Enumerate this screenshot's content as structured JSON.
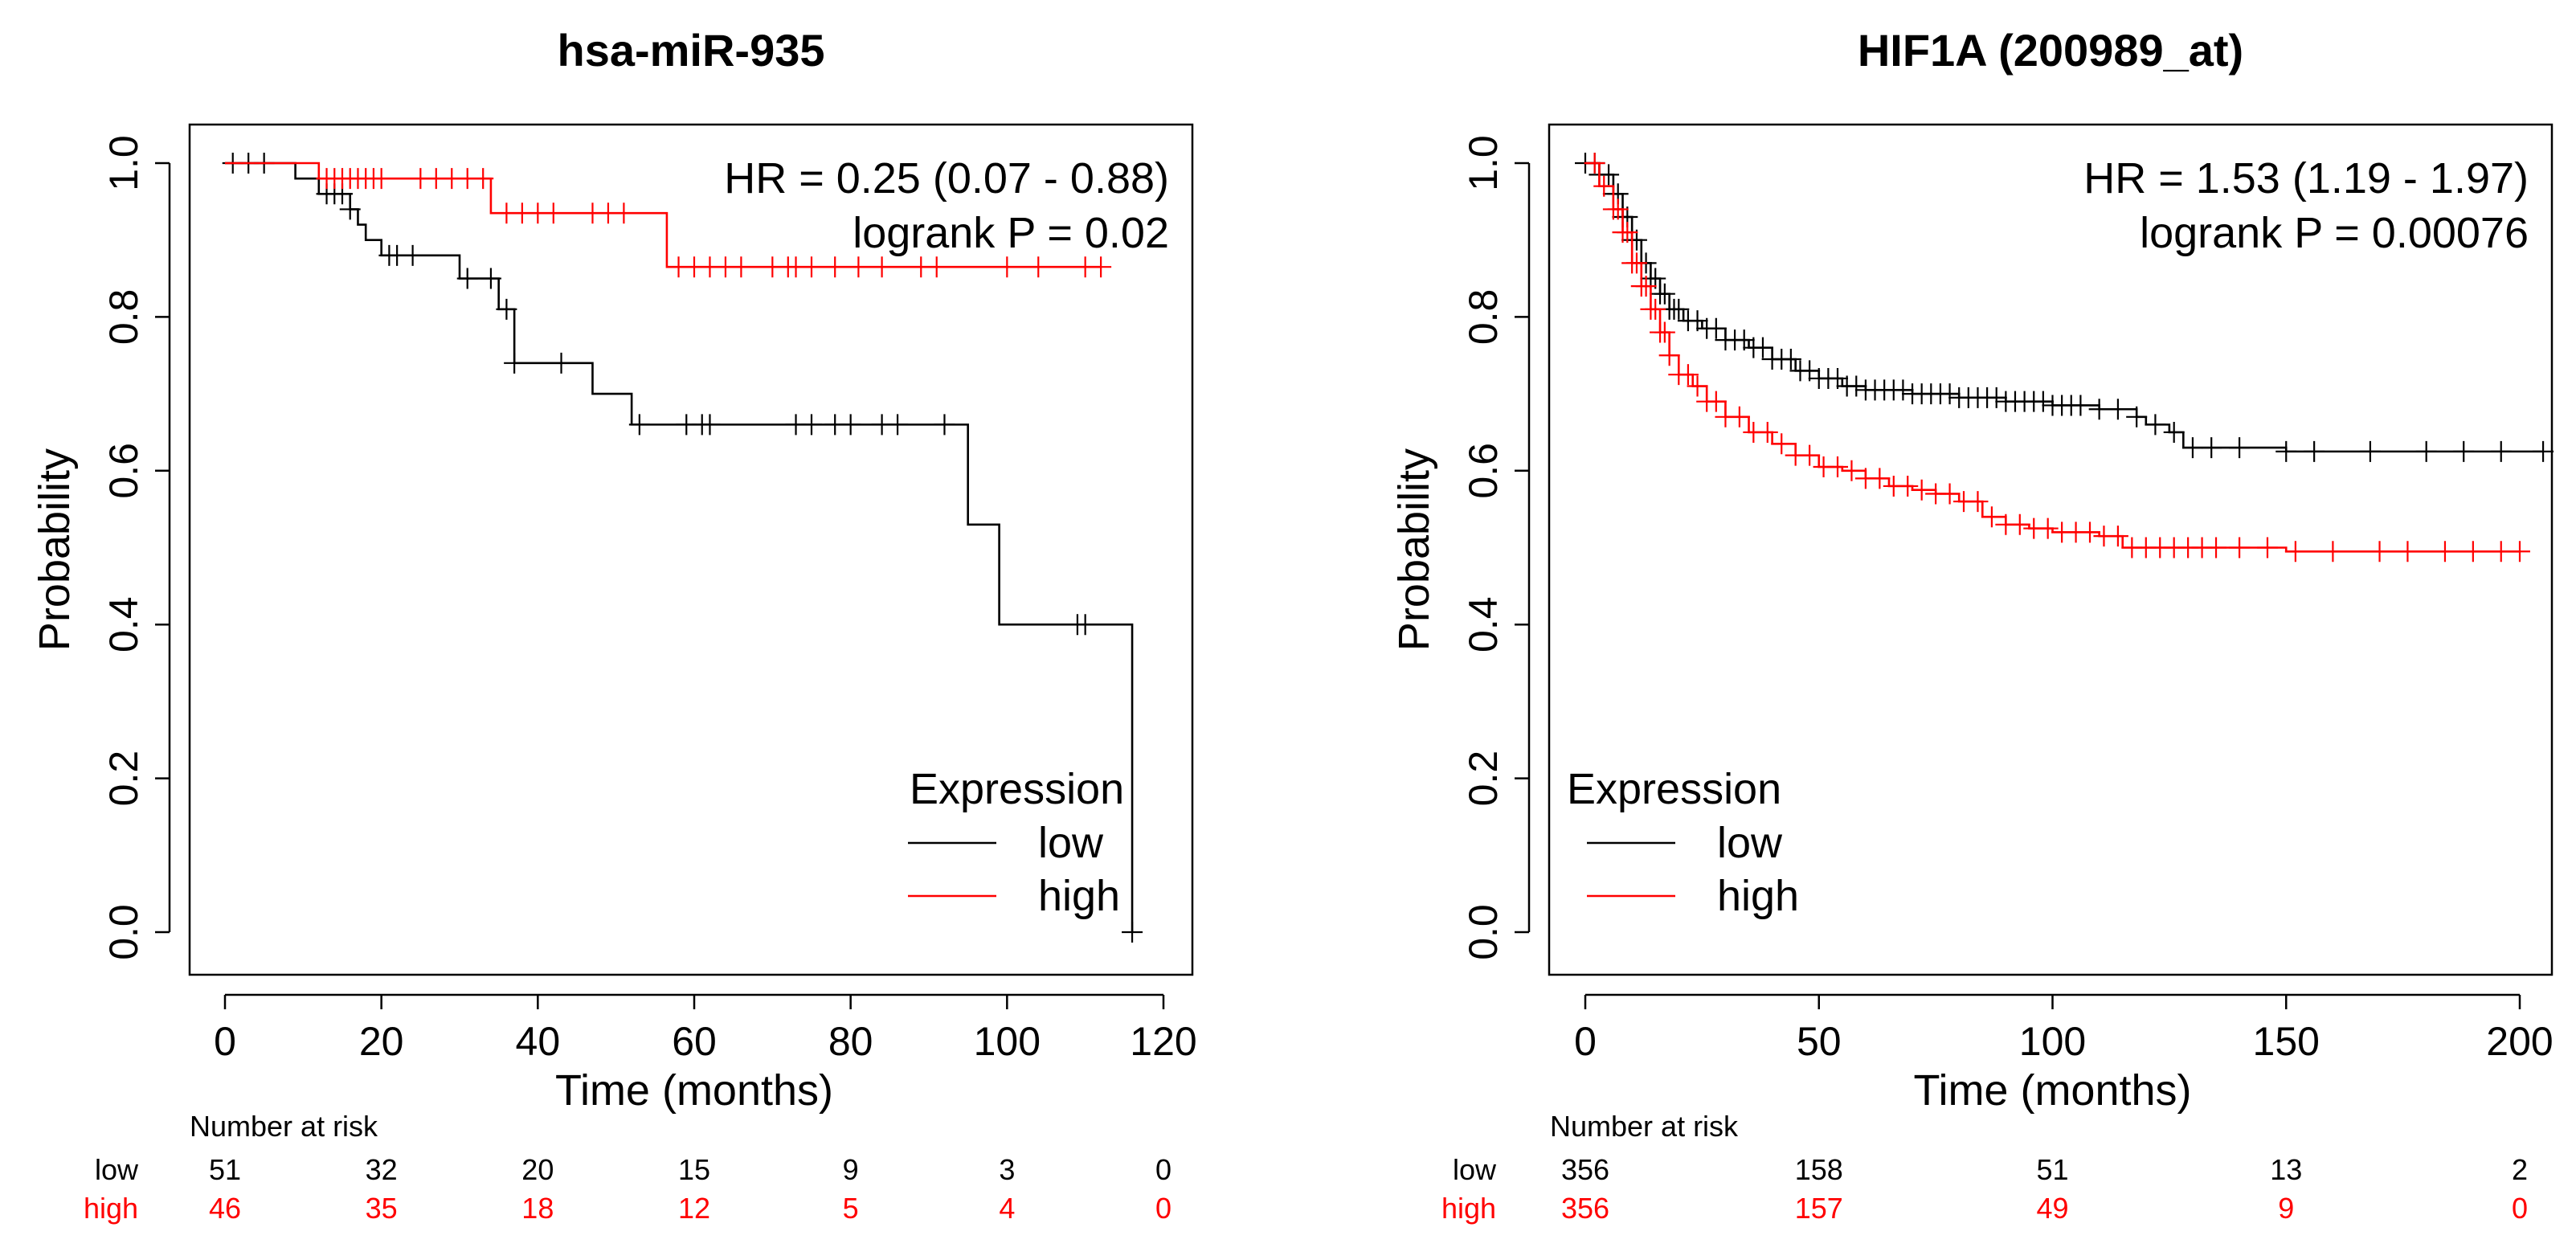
{
  "colors": {
    "low": "#000000",
    "high": "#ff0000",
    "axis": "#000000",
    "background": "#ffffff"
  },
  "chart_data": [
    {
      "type": "line",
      "subtype": "kaplan-meier",
      "title": "hsa-miR-935",
      "xlabel": "Time (months)",
      "ylabel": "Probability",
      "xlim": [
        0,
        120
      ],
      "ylim": [
        0,
        1
      ],
      "xticks": [
        0,
        20,
        40,
        60,
        80,
        100,
        120
      ],
      "yticks": [
        "0.0",
        "0.2",
        "0.4",
        "0.6",
        "0.8",
        "1.0"
      ],
      "hr_text": "HR = 0.25 (0.07 - 0.88)",
      "p_text": "logrank P = 0.02",
      "legend": {
        "title": "Expression",
        "position": "bottom-right",
        "entries": [
          "low",
          "high"
        ]
      },
      "series": [
        {
          "name": "low",
          "color": "#000000",
          "steps": [
            [
              0,
              1.0
            ],
            [
              9,
              0.98
            ],
            [
              12,
              0.96
            ],
            [
              16,
              0.94
            ],
            [
              17,
              0.92
            ],
            [
              18,
              0.9
            ],
            [
              20,
              0.88
            ],
            [
              30,
              0.85
            ],
            [
              35,
              0.81
            ],
            [
              37,
              0.74
            ],
            [
              47,
              0.7
            ],
            [
              52,
              0.66
            ],
            [
              95,
              0.53
            ],
            [
              99,
              0.4
            ],
            [
              116,
              0.0
            ]
          ],
          "end": 116,
          "censors": [
            1,
            3,
            5,
            13,
            14,
            15,
            16,
            21,
            22,
            24,
            31,
            34,
            36,
            37,
            43,
            53,
            59,
            61,
            62,
            73,
            75,
            78,
            80,
            84,
            86,
            92,
            109,
            110,
            116
          ]
        },
        {
          "name": "high",
          "color": "#ff0000",
          "steps": [
            [
              0,
              1.0
            ],
            [
              12,
              0.98
            ],
            [
              34,
              0.935
            ],
            [
              56.5,
              0.865
            ]
          ],
          "end": 112,
          "censors": [
            13,
            14,
            15,
            16,
            17,
            18,
            19,
            20,
            25,
            27,
            29,
            31,
            33,
            36,
            38,
            40,
            42,
            47,
            49,
            51,
            58,
            60,
            62,
            64,
            66,
            70,
            72,
            73,
            75,
            78,
            81,
            84,
            89,
            91,
            100,
            104,
            110,
            112
          ]
        }
      ],
      "risk_table": {
        "header": "Number at risk",
        "times": [
          0,
          20,
          40,
          60,
          80,
          100,
          120
        ],
        "rows": [
          {
            "label": "low",
            "color": "#000000",
            "values": [
              "51",
              "32",
              "20",
              "15",
              "9",
              "3",
              "0"
            ]
          },
          {
            "label": "high",
            "color": "#ff0000",
            "values": [
              "46",
              "35",
              "18",
              "12",
              "5",
              "4",
              "0"
            ]
          }
        ]
      }
    },
    {
      "type": "line",
      "subtype": "kaplan-meier",
      "title": "HIF1A (200989_at)",
      "xlabel": "Time (months)",
      "ylabel": "Probability",
      "xlim": [
        0,
        200
      ],
      "ylim": [
        0,
        1
      ],
      "xticks": [
        0,
        50,
        100,
        150,
        200
      ],
      "yticks": [
        "0.0",
        "0.2",
        "0.4",
        "0.6",
        "0.8",
        "1.0"
      ],
      "hr_text": "HR = 1.53 (1.19 - 1.97)",
      "p_text": "logrank P = 0.00076",
      "legend": {
        "title": "Expression",
        "position": "bottom-left",
        "entries": [
          "low",
          "high"
        ]
      },
      "series": [
        {
          "name": "low",
          "color": "#000000",
          "steps": [
            [
              0,
              1.0
            ],
            [
              3,
              0.985
            ],
            [
              6,
              0.96
            ],
            [
              8,
              0.93
            ],
            [
              10,
              0.9
            ],
            [
              12,
              0.87
            ],
            [
              14,
              0.85
            ],
            [
              16,
              0.83
            ],
            [
              18,
              0.81
            ],
            [
              21,
              0.795
            ],
            [
              25,
              0.785
            ],
            [
              30,
              0.77
            ],
            [
              35,
              0.76
            ],
            [
              40,
              0.745
            ],
            [
              45,
              0.73
            ],
            [
              50,
              0.72
            ],
            [
              55,
              0.71
            ],
            [
              60,
              0.705
            ],
            [
              70,
              0.7
            ],
            [
              80,
              0.695
            ],
            [
              90,
              0.69
            ],
            [
              100,
              0.685
            ],
            [
              110,
              0.68
            ],
            [
              118,
              0.67
            ],
            [
              120,
              0.66
            ],
            [
              125,
              0.65
            ],
            [
              128,
              0.63
            ],
            [
              140,
              0.63
            ],
            [
              150,
              0.625
            ]
          ],
          "end": 205,
          "censors": [
            0,
            2,
            3,
            5,
            6,
            7,
            8,
            9,
            10,
            11,
            12,
            13,
            14,
            15,
            16,
            17,
            18,
            19,
            20,
            22,
            24,
            26,
            28,
            30,
            32,
            34,
            36,
            38,
            40,
            42,
            44,
            46,
            48,
            50,
            52,
            54,
            56,
            58,
            60,
            62,
            64,
            66,
            68,
            70,
            72,
            74,
            76,
            78,
            80,
            82,
            84,
            86,
            88,
            90,
            92,
            94,
            96,
            98,
            100,
            102,
            104,
            106,
            110,
            114,
            118,
            122,
            126,
            130,
            134,
            140,
            150,
            156,
            168,
            180,
            188,
            196,
            205
          ]
        },
        {
          "name": "high",
          "color": "#ff0000",
          "steps": [
            [
              0,
              1.0
            ],
            [
              3,
              0.97
            ],
            [
              6,
              0.94
            ],
            [
              8,
              0.91
            ],
            [
              10,
              0.87
            ],
            [
              12,
              0.84
            ],
            [
              14,
              0.81
            ],
            [
              16,
              0.78
            ],
            [
              18,
              0.75
            ],
            [
              20,
              0.725
            ],
            [
              23,
              0.71
            ],
            [
              26,
              0.69
            ],
            [
              30,
              0.67
            ],
            [
              35,
              0.65
            ],
            [
              40,
              0.635
            ],
            [
              45,
              0.62
            ],
            [
              50,
              0.605
            ],
            [
              55,
              0.6
            ],
            [
              60,
              0.59
            ],
            [
              65,
              0.58
            ],
            [
              70,
              0.575
            ],
            [
              75,
              0.57
            ],
            [
              80,
              0.56
            ],
            [
              85,
              0.54
            ],
            [
              90,
              0.53
            ],
            [
              95,
              0.525
            ],
            [
              100,
              0.52
            ],
            [
              110,
              0.515
            ],
            [
              115,
              0.5
            ],
            [
              120,
              0.5
            ],
            [
              150,
              0.495
            ]
          ],
          "end": 200,
          "censors": [
            2,
            4,
            6,
            7,
            8,
            9,
            10,
            11,
            12,
            13,
            14,
            15,
            16,
            17,
            18,
            20,
            22,
            24,
            26,
            28,
            30,
            33,
            36,
            39,
            42,
            45,
            48,
            51,
            54,
            57,
            60,
            63,
            66,
            69,
            72,
            75,
            78,
            81,
            84,
            87,
            90,
            93,
            96,
            99,
            102,
            105,
            108,
            111,
            114,
            117,
            120,
            123,
            126,
            129,
            132,
            135,
            140,
            146,
            152,
            160,
            170,
            176,
            184,
            190,
            196,
            200
          ]
        }
      ],
      "risk_table": {
        "header": "Number at risk",
        "times": [
          0,
          50,
          100,
          150,
          200
        ],
        "rows": [
          {
            "label": "low",
            "color": "#000000",
            "values": [
              "356",
              "158",
              "51",
              "13",
              "2"
            ]
          },
          {
            "label": "high",
            "color": "#ff0000",
            "values": [
              "356",
              "157",
              "49",
              "9",
              "0"
            ]
          }
        ]
      }
    }
  ]
}
